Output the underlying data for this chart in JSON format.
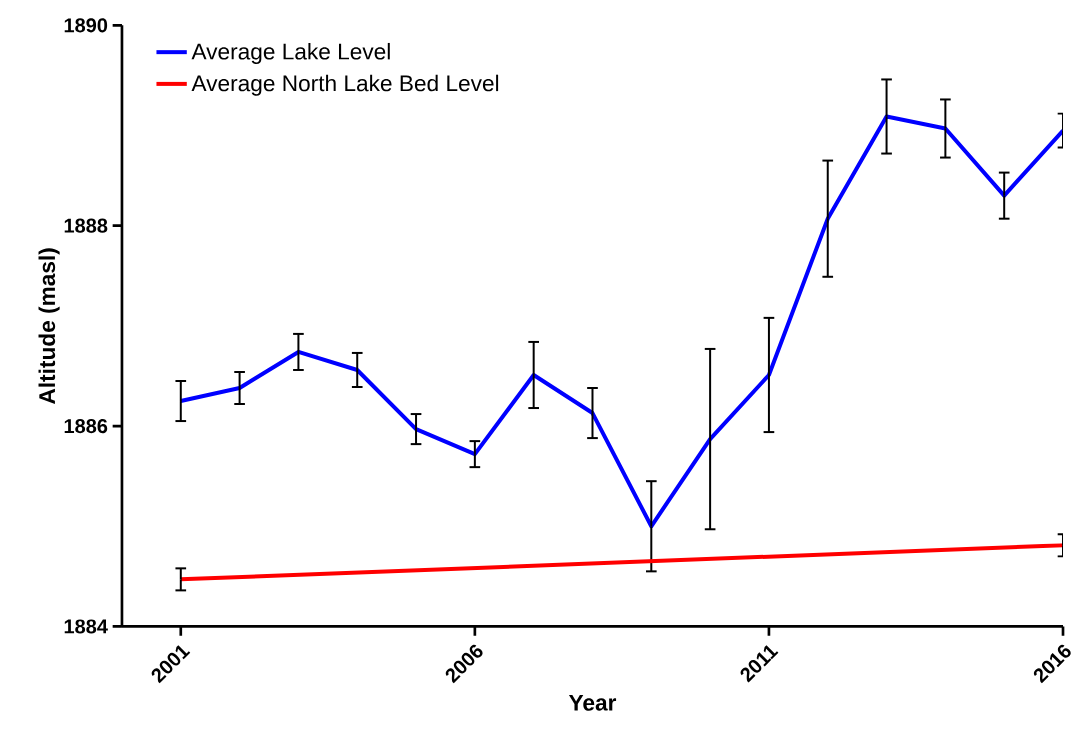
{
  "chart_data": {
    "type": "line",
    "xlabel": "Year",
    "ylabel": "Altitude (masl)",
    "xlim": [
      2000,
      2016
    ],
    "ylim": [
      1884,
      1890
    ],
    "xticks": [
      2001,
      2006,
      2011,
      2016
    ],
    "yticks": [
      1884,
      1886,
      1888,
      1890
    ],
    "legend": "top left",
    "grid": false,
    "series": [
      {
        "name": "Average Lake Level",
        "color": "#0000ff",
        "x": [
          2001,
          2002,
          2003,
          2004,
          2005,
          2006,
          2007,
          2008,
          2009,
          2010,
          2011,
          2012,
          2013,
          2014,
          2015,
          2016
        ],
        "values": [
          1886.25,
          1886.38,
          1886.74,
          1886.56,
          1885.97,
          1885.72,
          1886.51,
          1886.13,
          1885.0,
          1885.87,
          1886.51,
          1888.07,
          1889.09,
          1888.97,
          1888.3,
          1888.95
        ],
        "errors": [
          0.2,
          0.16,
          0.18,
          0.17,
          0.15,
          0.13,
          0.33,
          0.25,
          0.45,
          0.9,
          0.57,
          0.58,
          0.37,
          0.29,
          0.23,
          0.17
        ]
      },
      {
        "name": "Average North Lake Bed Level",
        "color": "#ff0000",
        "x": [
          2001,
          2016
        ],
        "values": [
          1884.47,
          1884.81
        ],
        "errors": [
          0.11,
          0.11
        ]
      }
    ]
  }
}
